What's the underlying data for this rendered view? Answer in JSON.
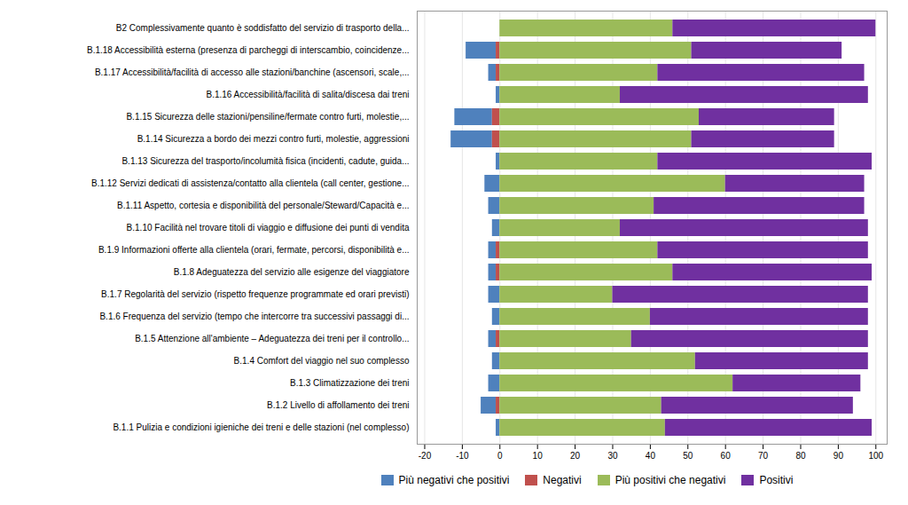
{
  "chart_data": {
    "type": "bar",
    "orientation": "horizontal",
    "stacked": true,
    "categories": [
      "B2 Complessivamente quanto è soddisfatto del servizio di trasporto della...",
      "B.1.18 Accessibilità esterna (presenza di parcheggi di interscambio, coincidenze...",
      "B.1.17 Accessibilità/facilità di accesso alle stazioni/banchine (ascensori, scale,...",
      "B.1.16 Accessibilità/facilità di salita/discesa dai treni",
      "B.1.15 Sicurezza delle stazioni/pensiline/fermate contro furti, molestie,...",
      "B.1.14 Sicurezza a bordo dei mezzi contro furti, molestie, aggressioni",
      "B.1.13 Sicurezza del trasporto/incolumità fisica (incidenti, cadute, guida...",
      "B.1.12 Servizi dedicati di assistenza/contatto alla clientela (call center, gestione...",
      "B.1.11 Aspetto, cortesia e disponibilità del personale/Steward/Capacità e...",
      "B.1.10 Facilità nel trovare titoli di viaggio e diffusione dei punti di vendita",
      "B.1.9 Informazioni offerte alla clientela (orari, fermate, percorsi, disponibilità e...",
      "B.1.8 Adeguatezza del servizio alle esigenze del viaggiatore",
      "B.1.7 Regolarità del servizio (rispetto frequenze programmate ed orari previsti)",
      "B.1.6 Frequenza del servizio (tempo che intercorre tra successivi passaggi di...",
      "B.1.5 Attenzione all'ambiente – Adeguatezza dei treni per il controllo...",
      "B.1.4 Comfort del viaggio nel suo complesso",
      "B.1.3 Climatizzazione dei treni",
      "B.1.2 Livello di affollamento dei treni",
      "B.1.1 Pulizia e condizioni igieniche dei treni e delle stazioni (nel complesso)"
    ],
    "series": [
      {
        "name": "Più negativi che positivi",
        "color": "#4f81bd",
        "values": [
          0,
          -8,
          -2,
          -1,
          -10,
          -11,
          -1,
          -4,
          -3,
          -2,
          -2,
          -2,
          -3,
          -2,
          -2,
          -2,
          -3,
          -4,
          -1
        ]
      },
      {
        "name": "Negativi",
        "color": "#c0504d",
        "values": [
          0,
          -1,
          -1,
          0,
          -2,
          -2,
          0,
          0,
          0,
          0,
          -1,
          -1,
          0,
          0,
          -1,
          0,
          0,
          -1,
          0
        ]
      },
      {
        "name": "Più positivi che negativi",
        "color": "#9bbb59",
        "values": [
          46,
          51,
          42,
          32,
          53,
          51,
          42,
          60,
          41,
          32,
          42,
          46,
          30,
          40,
          35,
          52,
          62,
          43,
          44
        ]
      },
      {
        "name": "Positivi",
        "color": "#7030a0",
        "values": [
          54,
          40,
          55,
          66,
          36,
          38,
          57,
          37,
          56,
          66,
          56,
          53,
          68,
          58,
          63,
          46,
          34,
          51,
          55
        ]
      }
    ],
    "xlim": [
      -22,
      103
    ],
    "xticks": [
      -20,
      -10,
      0,
      10,
      20,
      30,
      40,
      50,
      60,
      70,
      80,
      90,
      100
    ],
    "grid": true,
    "legend": "bottom"
  }
}
